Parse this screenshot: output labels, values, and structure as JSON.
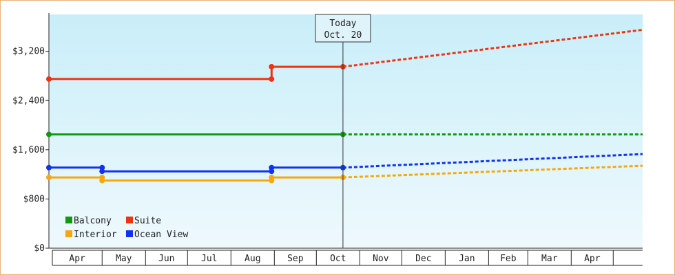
{
  "chart_data": {
    "type": "line",
    "title": "",
    "xlabel": "",
    "ylabel": "",
    "ylim": [
      0,
      3800
    ],
    "y_ticks": [
      0,
      800,
      1600,
      2400,
      3200
    ],
    "y_tick_labels": [
      "$0",
      "$800",
      "$1,600",
      "$2,400",
      "$3,200"
    ],
    "month_labels": [
      "Apr",
      "May",
      "Jun",
      "Jul",
      "Aug",
      "Sep",
      "Oct",
      "Nov",
      "Dec",
      "Jan",
      "Feb",
      "Mar",
      "Apr"
    ],
    "x_range": [
      "2013-03-24",
      "2014-05-22"
    ],
    "month_boundaries": [
      "2013-03-24",
      "2013-05-01",
      "2013-06-01",
      "2013-07-01",
      "2013-08-01",
      "2013-09-01",
      "2013-10-01",
      "2013-11-01",
      "2013-12-01",
      "2014-01-01",
      "2014-02-01",
      "2014-03-01",
      "2014-04-01",
      "2014-05-01"
    ],
    "today": {
      "label": "Today",
      "date_label": "Oct. 20",
      "date": "2013-10-20"
    },
    "grid": false,
    "legend_position": "bottom-left",
    "series": [
      {
        "name": "Balcony",
        "color": "#119911",
        "history": [
          [
            "2013-03-24",
            1850
          ],
          [
            "2013-10-20",
            1850
          ]
        ],
        "history_markers": [
          "2013-03-24",
          "2013-10-20"
        ],
        "forecast": [
          [
            "2013-10-20",
            1850
          ],
          [
            "2014-05-22",
            1850
          ]
        ]
      },
      {
        "name": "Suite",
        "color": "#ee3311",
        "history": [
          [
            "2013-03-24",
            2750
          ],
          [
            "2013-08-30",
            2750
          ],
          [
            "2013-08-30",
            2950
          ],
          [
            "2013-10-20",
            2950
          ]
        ],
        "history_markers": [
          "2013-03-24",
          "2013-08-30",
          "2013-08-30",
          "2013-10-20"
        ],
        "forecast": [
          [
            "2013-10-20",
            2950
          ],
          [
            "2014-05-22",
            3550
          ]
        ]
      },
      {
        "name": "Interior",
        "color": "#f5a80e",
        "history": [
          [
            "2013-03-24",
            1150
          ],
          [
            "2013-05-01",
            1150
          ],
          [
            "2013-05-01",
            1100
          ],
          [
            "2013-08-30",
            1100
          ],
          [
            "2013-08-30",
            1150
          ],
          [
            "2013-10-20",
            1150
          ]
        ],
        "history_markers": [
          "2013-03-24",
          "2013-05-01",
          "2013-05-01",
          "2013-08-30",
          "2013-08-30",
          "2013-10-20"
        ],
        "forecast": [
          [
            "2013-10-20",
            1150
          ],
          [
            "2014-05-22",
            1340
          ]
        ]
      },
      {
        "name": "Ocean View",
        "color": "#1133ee",
        "history": [
          [
            "2013-03-24",
            1310
          ],
          [
            "2013-05-01",
            1310
          ],
          [
            "2013-05-01",
            1250
          ],
          [
            "2013-08-30",
            1250
          ],
          [
            "2013-08-30",
            1310
          ],
          [
            "2013-10-20",
            1310
          ]
        ],
        "history_markers": [
          "2013-03-24",
          "2013-05-01",
          "2013-05-01",
          "2013-08-30",
          "2013-08-30",
          "2013-10-20"
        ],
        "forecast": [
          [
            "2013-10-20",
            1310
          ],
          [
            "2014-05-22",
            1530
          ]
        ]
      }
    ],
    "legend": [
      {
        "name": "Balcony",
        "color": "#119911"
      },
      {
        "name": "Suite",
        "color": "#ee3311"
      },
      {
        "name": "Interior",
        "color": "#f5a80e"
      },
      {
        "name": "Ocean View",
        "color": "#1133ee"
      }
    ]
  }
}
